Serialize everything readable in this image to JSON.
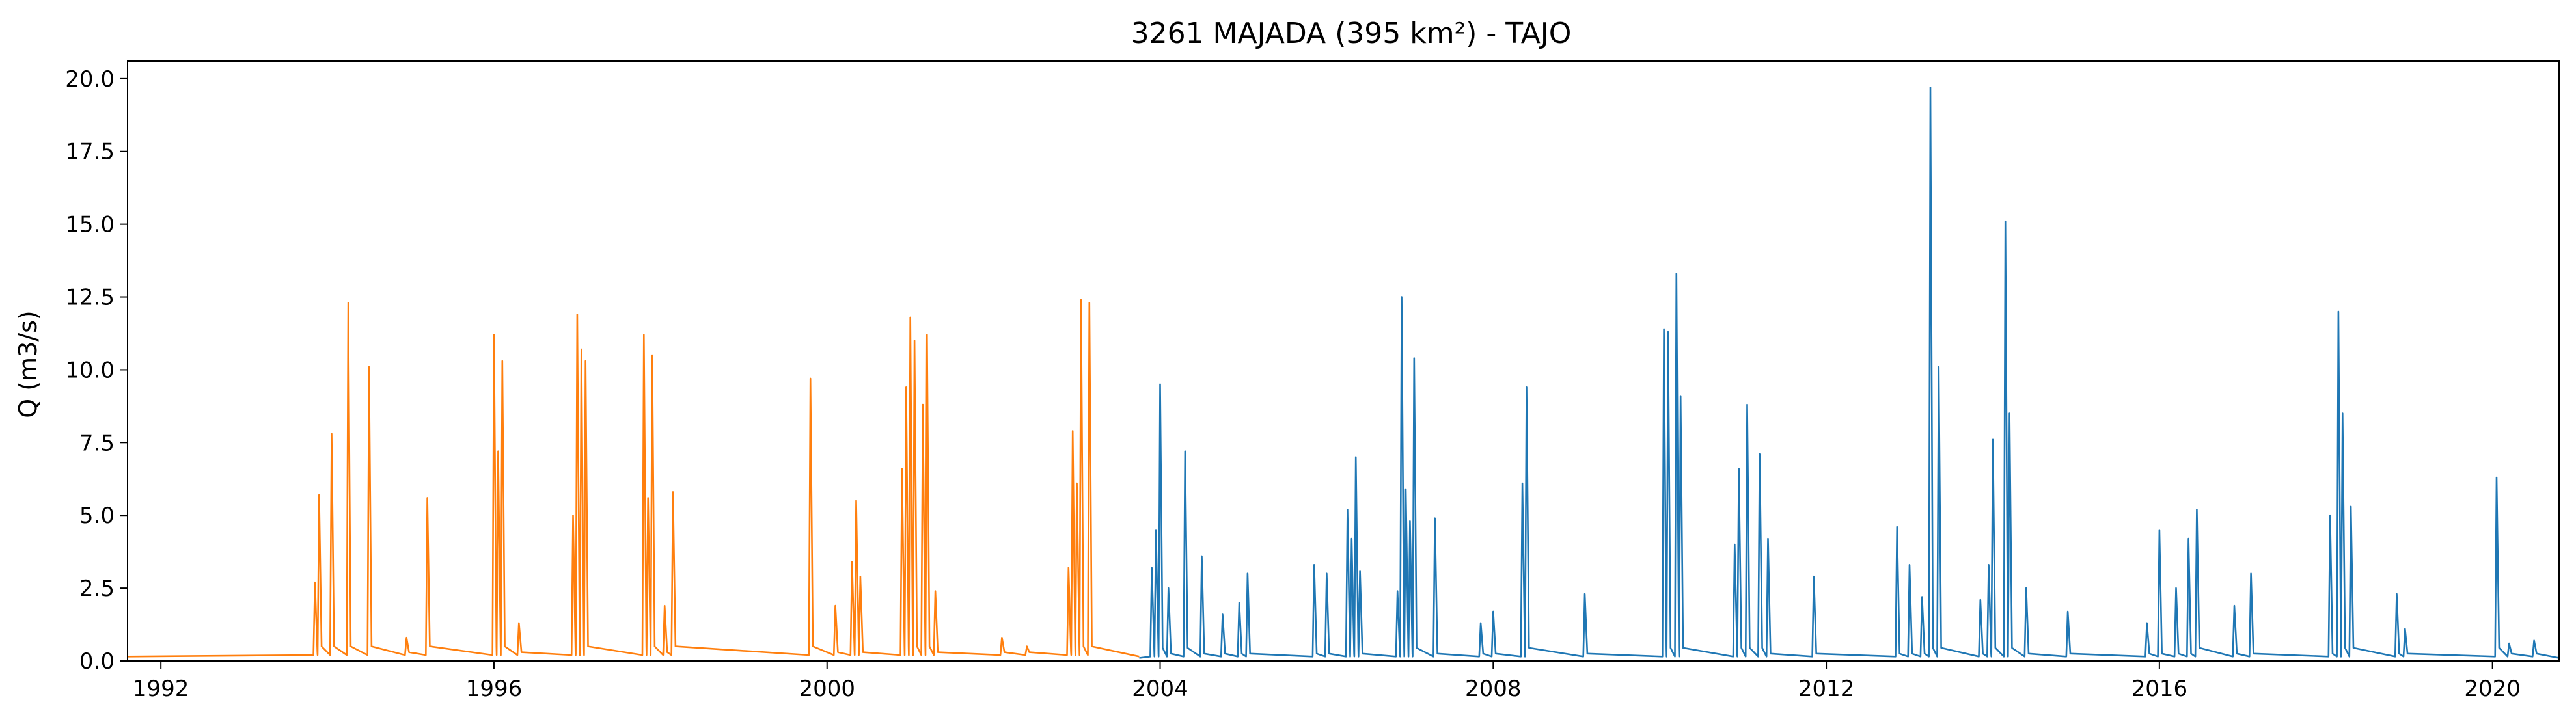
{
  "chart_data": {
    "type": "line",
    "title": "3261 MAJADA (395 km²) - TAJO",
    "xlabel": "",
    "ylabel": "Q (m3/s)",
    "xlim": [
      1991.6,
      2020.8
    ],
    "ylim": [
      0,
      20.6
    ],
    "x_ticks": [
      "1992",
      "1996",
      "2000",
      "2004",
      "2008",
      "2012",
      "2016",
      "2020"
    ],
    "y_ticks": [
      "0.0",
      "2.5",
      "5.0",
      "7.5",
      "10.0",
      "12.5",
      "15.0",
      "17.5",
      "20.0"
    ],
    "grid": false,
    "legend": "none",
    "baseline": 0.05,
    "series": [
      {
        "color": "#ff7f0e",
        "x_range": [
          1991.6,
          2003.75
        ],
        "base_level": 0.15,
        "peaks": [
          [
            1993.85,
            2.7
          ],
          [
            1993.9,
            5.7
          ],
          [
            1994.05,
            7.8
          ],
          [
            1994.25,
            12.3
          ],
          [
            1994.5,
            10.1
          ],
          [
            1994.95,
            0.8
          ],
          [
            1995.2,
            5.6
          ],
          [
            1996.0,
            11.2
          ],
          [
            1996.05,
            7.2
          ],
          [
            1996.1,
            10.3
          ],
          [
            1996.3,
            1.3
          ],
          [
            1996.95,
            5.0
          ],
          [
            1997.0,
            11.9
          ],
          [
            1997.05,
            10.7
          ],
          [
            1997.1,
            10.3
          ],
          [
            1997.8,
            11.2
          ],
          [
            1997.85,
            5.6
          ],
          [
            1997.9,
            10.5
          ],
          [
            1998.05,
            1.9
          ],
          [
            1998.15,
            5.8
          ],
          [
            1999.8,
            9.7
          ],
          [
            2000.1,
            1.9
          ],
          [
            2000.3,
            3.4
          ],
          [
            2000.35,
            5.5
          ],
          [
            2000.4,
            2.9
          ],
          [
            2000.9,
            6.6
          ],
          [
            2000.95,
            9.4
          ],
          [
            2001.0,
            11.8
          ],
          [
            2001.05,
            11.0
          ],
          [
            2001.15,
            8.8
          ],
          [
            2001.2,
            11.2
          ],
          [
            2001.3,
            2.4
          ],
          [
            2002.1,
            0.8
          ],
          [
            2002.4,
            0.5
          ],
          [
            2002.9,
            3.2
          ],
          [
            2002.95,
            7.9
          ],
          [
            2003.0,
            6.1
          ],
          [
            2003.05,
            12.4
          ],
          [
            2003.15,
            12.3
          ]
        ]
      },
      {
        "color": "#1f77b4",
        "x_range": [
          2003.75,
          2020.8
        ],
        "base_level": 0.1,
        "peaks": [
          [
            2003.9,
            3.2
          ],
          [
            2003.95,
            4.5
          ],
          [
            2004.0,
            9.5
          ],
          [
            2004.1,
            2.5
          ],
          [
            2004.3,
            7.2
          ],
          [
            2004.5,
            3.6
          ],
          [
            2004.75,
            1.6
          ],
          [
            2004.95,
            2.0
          ],
          [
            2005.05,
            3.0
          ],
          [
            2005.85,
            3.3
          ],
          [
            2006.0,
            3.0
          ],
          [
            2006.25,
            5.2
          ],
          [
            2006.3,
            4.2
          ],
          [
            2006.35,
            7.0
          ],
          [
            2006.4,
            3.1
          ],
          [
            2006.85,
            2.4
          ],
          [
            2006.9,
            12.5
          ],
          [
            2006.95,
            5.9
          ],
          [
            2007.0,
            4.8
          ],
          [
            2007.05,
            10.4
          ],
          [
            2007.3,
            4.9
          ],
          [
            2007.85,
            1.3
          ],
          [
            2008.0,
            1.7
          ],
          [
            2008.35,
            6.1
          ],
          [
            2008.4,
            9.4
          ],
          [
            2009.1,
            2.3
          ],
          [
            2010.05,
            11.4
          ],
          [
            2010.1,
            11.3
          ],
          [
            2010.2,
            13.3
          ],
          [
            2010.25,
            9.1
          ],
          [
            2010.9,
            4.0
          ],
          [
            2010.95,
            6.6
          ],
          [
            2011.05,
            8.8
          ],
          [
            2011.2,
            7.1
          ],
          [
            2011.3,
            4.2
          ],
          [
            2011.85,
            2.9
          ],
          [
            2012.85,
            4.6
          ],
          [
            2013.0,
            3.3
          ],
          [
            2013.15,
            2.2
          ],
          [
            2013.25,
            19.7
          ],
          [
            2013.35,
            10.1
          ],
          [
            2013.85,
            2.1
          ],
          [
            2013.95,
            3.3
          ],
          [
            2014.0,
            7.6
          ],
          [
            2014.15,
            15.1
          ],
          [
            2014.2,
            8.5
          ],
          [
            2014.4,
            2.5
          ],
          [
            2014.9,
            1.7
          ],
          [
            2015.85,
            1.3
          ],
          [
            2016.0,
            4.5
          ],
          [
            2016.2,
            2.5
          ],
          [
            2016.35,
            4.2
          ],
          [
            2016.45,
            5.2
          ],
          [
            2016.9,
            1.9
          ],
          [
            2017.1,
            3.0
          ],
          [
            2018.05,
            5.0
          ],
          [
            2018.15,
            12.0
          ],
          [
            2018.2,
            8.5
          ],
          [
            2018.3,
            5.3
          ],
          [
            2018.85,
            2.3
          ],
          [
            2018.95,
            1.1
          ],
          [
            2020.05,
            6.3
          ],
          [
            2020.2,
            0.6
          ],
          [
            2020.5,
            0.7
          ]
        ]
      }
    ]
  }
}
